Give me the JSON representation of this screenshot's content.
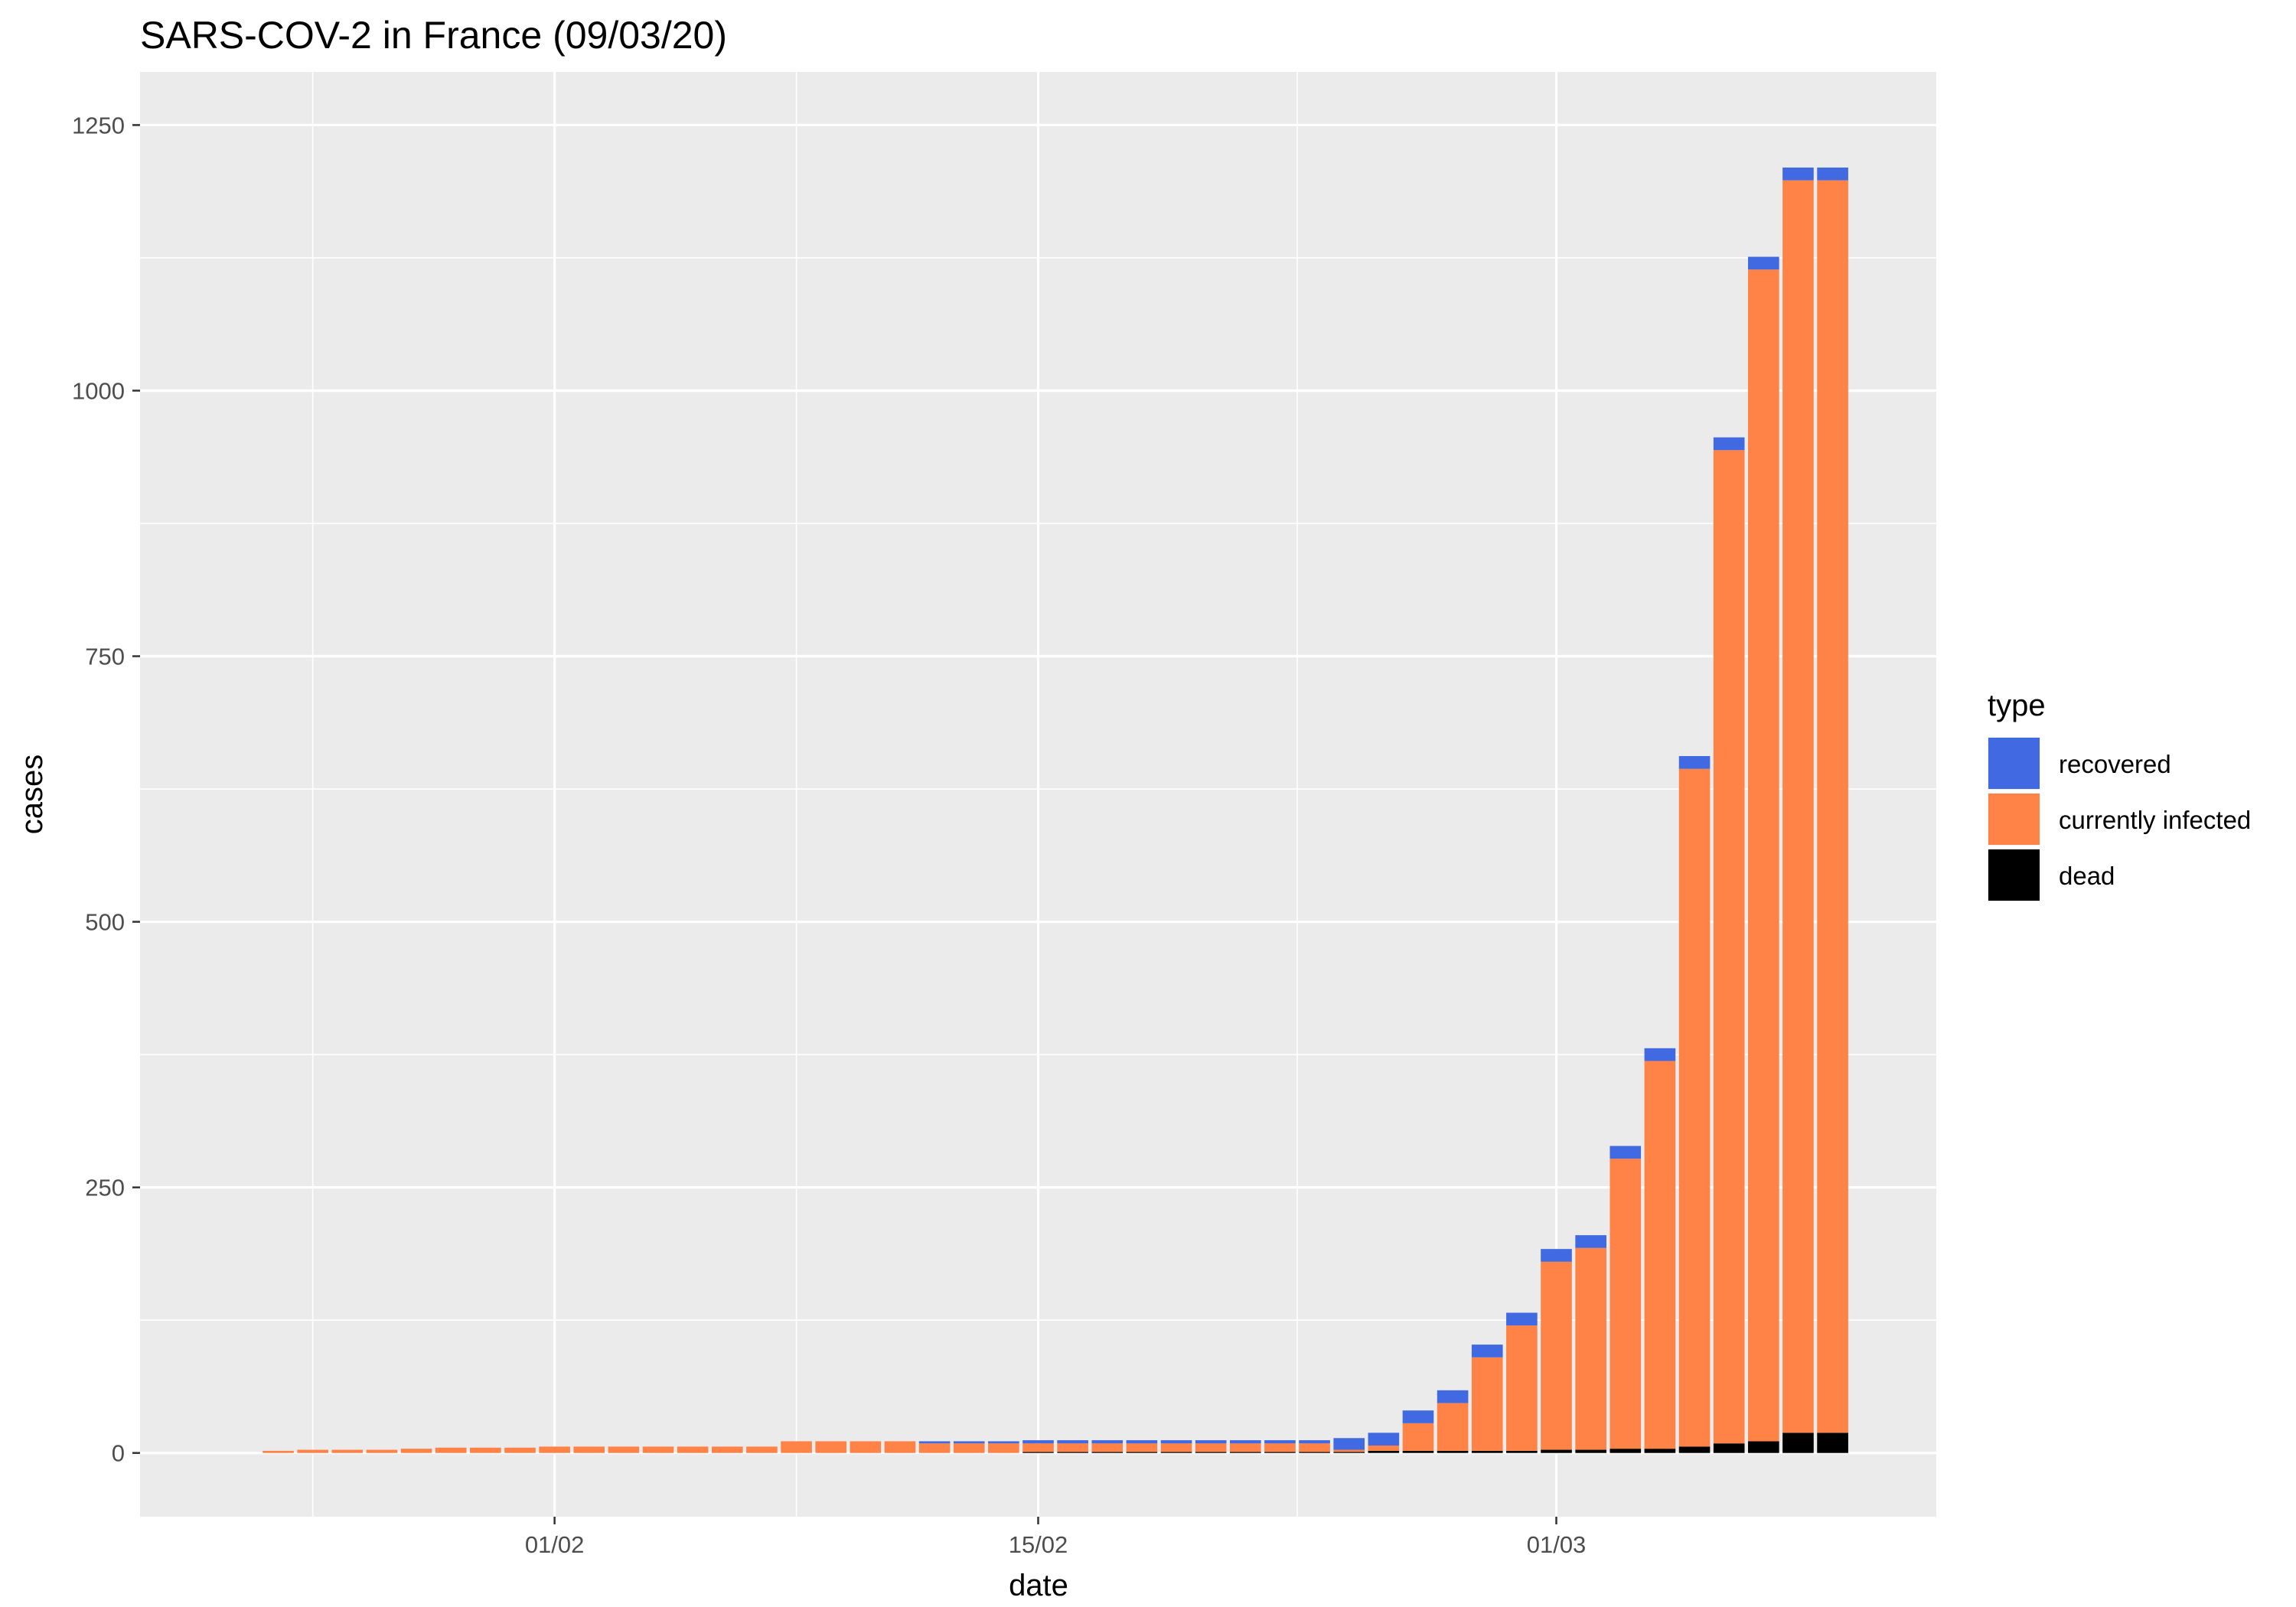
{
  "chart_data": {
    "type": "bar",
    "stacked": true,
    "title": "SARS-COV-2 in France (09/03/20)",
    "xlabel": "date",
    "ylabel": "cases",
    "x_start_date": "2020-01-24",
    "x": [
      "24/01",
      "25/01",
      "26/01",
      "27/01",
      "28/01",
      "29/01",
      "30/01",
      "31/01",
      "01/02",
      "02/02",
      "03/02",
      "04/02",
      "05/02",
      "06/02",
      "07/02",
      "08/02",
      "09/02",
      "10/02",
      "11/02",
      "12/02",
      "13/02",
      "14/02",
      "15/02",
      "16/02",
      "17/02",
      "18/02",
      "19/02",
      "20/02",
      "21/02",
      "22/02",
      "23/02",
      "24/02",
      "25/02",
      "26/02",
      "27/02",
      "28/02",
      "29/02",
      "01/03",
      "02/03",
      "03/03",
      "04/03",
      "05/03",
      "06/03",
      "07/03",
      "08/03",
      "09/03"
    ],
    "x_ticks": [
      "01/02",
      "15/02",
      "01/03"
    ],
    "x_range": [
      "2020-01-20",
      "2020-03-12"
    ],
    "y_ticks": [
      0,
      250,
      500,
      750,
      1000,
      1250
    ],
    "ylim": [
      -60,
      1300
    ],
    "grid": true,
    "legend": {
      "title": "type",
      "placement": "right",
      "entries": [
        {
          "label": "recovered",
          "color": "#4169E1"
        },
        {
          "label": "currently infected",
          "color": "#FF8247"
        },
        {
          "label": "dead",
          "color": "#000000"
        }
      ]
    },
    "series": [
      {
        "name": "dead",
        "color": "#000000",
        "values": [
          0,
          0,
          0,
          0,
          0,
          0,
          0,
          0,
          0,
          0,
          0,
          0,
          0,
          0,
          0,
          0,
          0,
          0,
          0,
          0,
          0,
          0,
          1,
          1,
          1,
          1,
          1,
          1,
          1,
          1,
          1,
          1,
          2,
          2,
          2,
          2,
          2,
          3,
          3,
          4,
          4,
          6,
          9,
          11,
          19,
          19
        ]
      },
      {
        "name": "currently infected",
        "color": "#FF8247",
        "values": [
          2,
          3,
          3,
          3,
          4,
          5,
          5,
          5,
          6,
          6,
          6,
          6,
          6,
          6,
          6,
          11,
          11,
          11,
          11,
          9,
          9,
          9,
          8,
          8,
          8,
          8,
          8,
          8,
          8,
          8,
          8,
          2,
          5,
          26,
          45,
          88,
          118,
          177,
          190,
          273,
          365,
          638,
          935,
          1103,
          1179,
          1179
        ]
      },
      {
        "name": "recovered",
        "color": "#4169E1",
        "values": [
          0,
          0,
          0,
          0,
          0,
          0,
          0,
          0,
          0,
          0,
          0,
          0,
          0,
          0,
          0,
          0,
          0,
          0,
          0,
          2,
          2,
          2,
          3,
          3,
          3,
          3,
          3,
          3,
          3,
          3,
          3,
          11,
          12,
          12,
          12,
          12,
          12,
          12,
          12,
          12,
          12,
          12,
          12,
          12,
          12,
          12
        ]
      }
    ]
  }
}
